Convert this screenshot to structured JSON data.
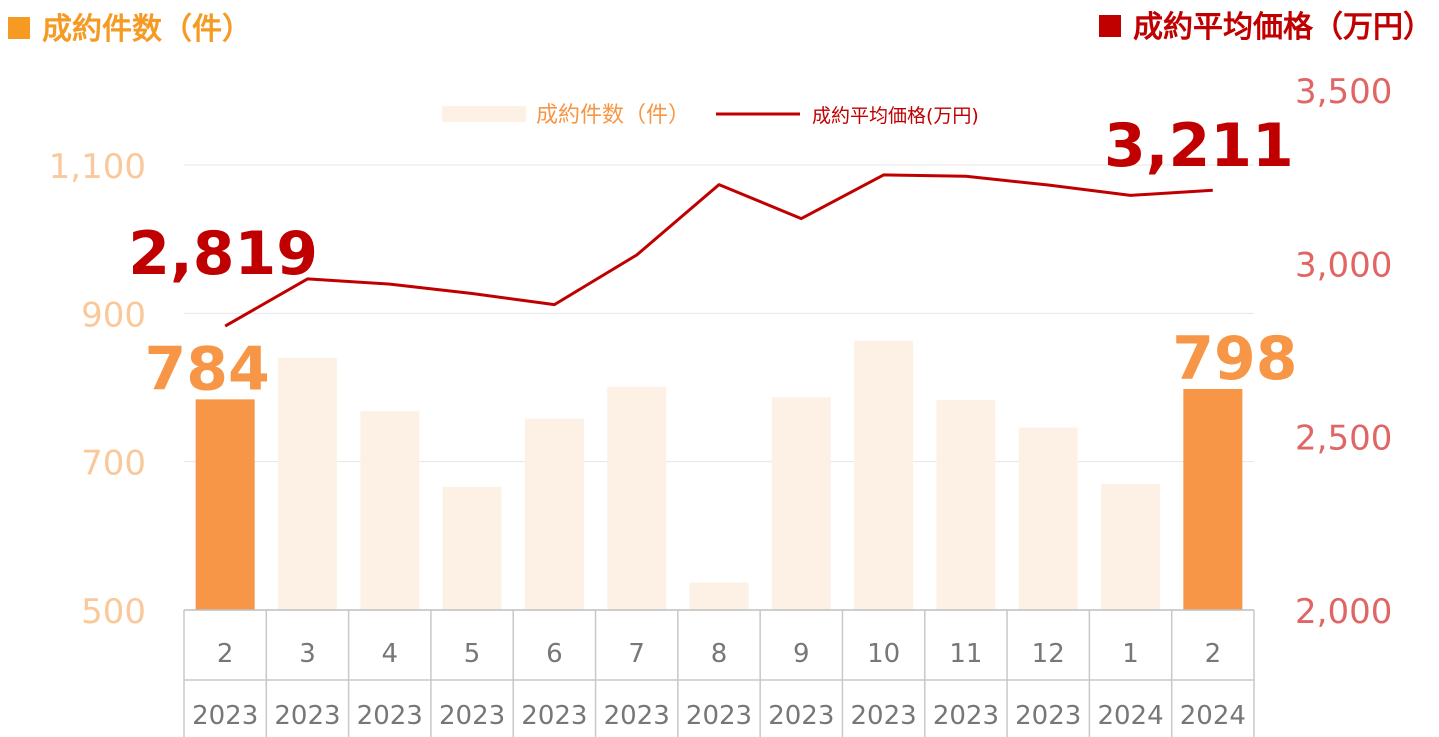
{
  "header": {
    "left_title": "成約件数（件）",
    "right_title": "成約平均価格（万円）"
  },
  "chart_data": {
    "type": "bar",
    "categories": [
      {
        "month": "2",
        "year": "2023"
      },
      {
        "month": "3",
        "year": "2023"
      },
      {
        "month": "4",
        "year": "2023"
      },
      {
        "month": "5",
        "year": "2023"
      },
      {
        "month": "6",
        "year": "2023"
      },
      {
        "month": "7",
        "year": "2023"
      },
      {
        "month": "8",
        "year": "2023"
      },
      {
        "month": "9",
        "year": "2023"
      },
      {
        "month": "10",
        "year": "2023"
      },
      {
        "month": "11",
        "year": "2023"
      },
      {
        "month": "12",
        "year": "2023"
      },
      {
        "month": "1",
        "year": "2024"
      },
      {
        "month": "2",
        "year": "2024"
      }
    ],
    "series": [
      {
        "name": "成約件数（件）",
        "type": "bar",
        "axis": "left",
        "values": [
          784,
          840,
          768,
          666,
          758,
          801,
          537,
          787,
          863,
          783,
          746,
          670,
          798
        ]
      },
      {
        "name": "成約平均価格(万円)",
        "type": "line",
        "axis": "right",
        "values": [
          2819,
          2955,
          2940,
          2913,
          2881,
          3024,
          3227,
          3129,
          3255,
          3251,
          3226,
          3196,
          3211
        ]
      }
    ],
    "left_axis": {
      "min": 500,
      "max": 1200,
      "ticks": [
        "500",
        "700",
        "900",
        "1,100"
      ],
      "tick_values": [
        500,
        700,
        900,
        1100
      ]
    },
    "right_axis": {
      "min": 2000,
      "max": 3500,
      "ticks": [
        "2,000",
        "2,500",
        "3,000",
        "3,500"
      ],
      "tick_values": [
        2000,
        2500,
        3000,
        3500
      ]
    },
    "highlight_indices": [
      0,
      12
    ],
    "data_labels": [
      {
        "series": 0,
        "index": 0,
        "text": "784"
      },
      {
        "series": 0,
        "index": 12,
        "text": "798"
      },
      {
        "series": 1,
        "index": 0,
        "text": "2,819"
      },
      {
        "series": 1,
        "index": 12,
        "text": "3,211"
      }
    ],
    "legend": {
      "placement": "top-center"
    },
    "grid": true,
    "colors": {
      "bar_highlight": "#f79646",
      "bar_normal": "#fdf1e6",
      "line": "#c00000",
      "left_axis_text": "#f9c99b",
      "right_axis_text": "#e06666",
      "title_left": "#f59a23",
      "title_right": "#c00000",
      "grid": "#e6e6e6",
      "category_text": "#777777"
    }
  }
}
